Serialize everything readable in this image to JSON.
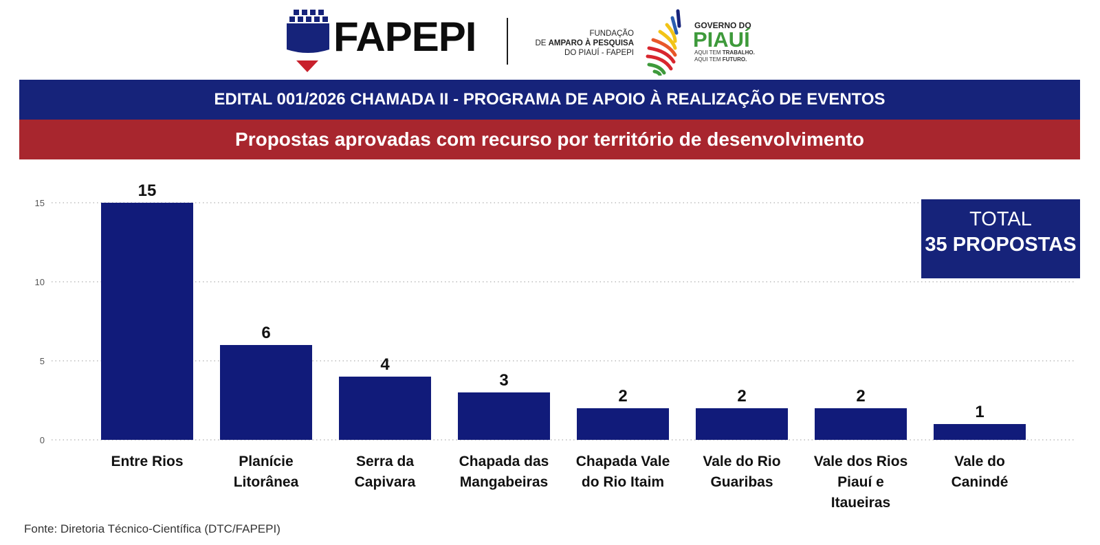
{
  "header": {
    "fapepi_logo_text": "FAPEPI",
    "fundacao_line1": "FUNDAÇÃO",
    "fundacao_line2_prefix": "DE ",
    "fundacao_line2_bold": "AMPARO À PESQUISA",
    "fundacao_line3": "DO PIAUÍ - FAPEPI",
    "gov_top": "GOVERNO DO",
    "gov_name": "PIAUÍ",
    "gov_slogan1_prefix": "AQUI TEM ",
    "gov_slogan1_bold": "TRABALHO.",
    "gov_slogan2_prefix": "AQUI TEM ",
    "gov_slogan2_bold": "FUTURO."
  },
  "banner": {
    "title": "EDITAL 001/2026 CHAMADA II  - PROGRAMA DE APOIO À REALIZAÇÃO DE EVENTOS",
    "subtitle": "Propostas aprovadas com recurso por território de desenvolvimento"
  },
  "total": {
    "label": "TOTAL",
    "value": "35 PROPOSTAS"
  },
  "source": "Fonte: Diretoria Técnico-Científica (DTC/FAPEPI)",
  "colors": {
    "bar": "#111b7a",
    "banner_blue": "#16237a",
    "banner_red": "#a8262e"
  },
  "chart_data": {
    "type": "bar",
    "categories": [
      [
        "Entre Rios"
      ],
      [
        "Planície",
        "Litorânea"
      ],
      [
        "Serra da",
        "Capivara"
      ],
      [
        "Chapada das",
        "Mangabeiras"
      ],
      [
        "Chapada Vale",
        "do Rio Itaim"
      ],
      [
        "Vale do Rio",
        "Guaribas"
      ],
      [
        "Vale dos Rios",
        "Piauí e",
        "Itaueiras"
      ],
      [
        "Vale do",
        "Canindé"
      ]
    ],
    "values": [
      15,
      6,
      4,
      3,
      2,
      2,
      2,
      1
    ],
    "yticks": [
      0,
      5,
      10,
      15
    ],
    "ylim": [
      0,
      15
    ],
    "grid": true,
    "data_labels": true
  }
}
